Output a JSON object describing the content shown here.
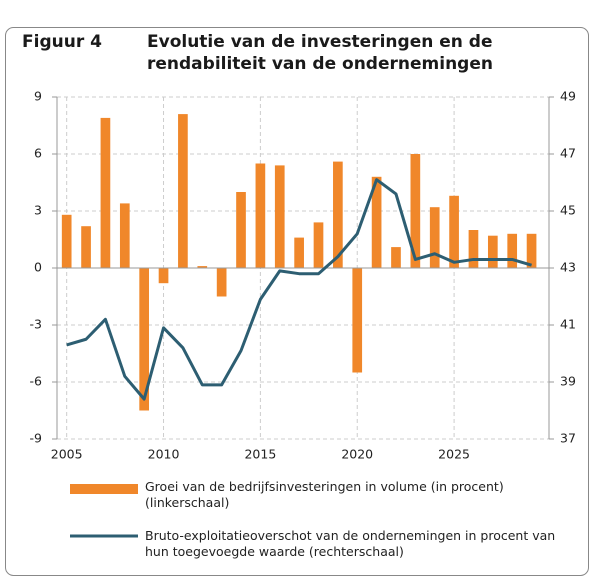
{
  "chart_data": {
    "type": "combo",
    "figure_label": "Figuur 4",
    "title": "Evolutie van de investeringen en de rendabiliteit van de ondernemingen",
    "x": [
      2005,
      2006,
      2007,
      2008,
      2009,
      2010,
      2011,
      2012,
      2013,
      2014,
      2015,
      2016,
      2017,
      2018,
      2019,
      2020,
      2021,
      2022,
      2023,
      2024,
      2025,
      2026,
      2027,
      2028,
      2029
    ],
    "series": [
      {
        "name": "Groei van de bedrijfsinvesteringen in volume (in procent) (linkerschaal)",
        "type": "bar",
        "color": "#f0872a",
        "values": [
          2.8,
          2.2,
          7.9,
          3.4,
          -7.5,
          -0.8,
          8.1,
          0.1,
          -1.5,
          4.0,
          5.5,
          5.4,
          1.6,
          2.4,
          5.6,
          -5.5,
          4.8,
          1.1,
          6.0,
          3.2,
          3.8,
          2.0,
          1.7,
          1.8,
          1.8
        ]
      },
      {
        "name": "Bruto-exploitatieoverschot van de ondernemingen in procent van hun toegevoegde waarde (rechterschaal)",
        "type": "line",
        "axis": "y2",
        "color": "#2d5e72",
        "values": [
          40.3,
          40.5,
          41.2,
          39.2,
          38.4,
          40.9,
          40.2,
          38.9,
          38.9,
          40.1,
          41.9,
          42.9,
          42.8,
          42.8,
          43.4,
          44.2,
          46.1,
          45.6,
          43.3,
          43.5,
          43.2,
          43.3,
          43.3,
          43.3,
          43.1
        ]
      }
    ],
    "xlim": [
      2004.5,
      2029.9
    ],
    "xticks": [
      2005,
      2010,
      2015,
      2020,
      2025
    ],
    "ylim": [
      -9,
      9
    ],
    "yticks": [
      -9,
      -6,
      -3,
      0,
      3,
      6,
      9
    ],
    "y2lim": [
      37,
      49
    ],
    "y2ticks": [
      37,
      39,
      41,
      43,
      45,
      47,
      49
    ],
    "grid": true
  }
}
